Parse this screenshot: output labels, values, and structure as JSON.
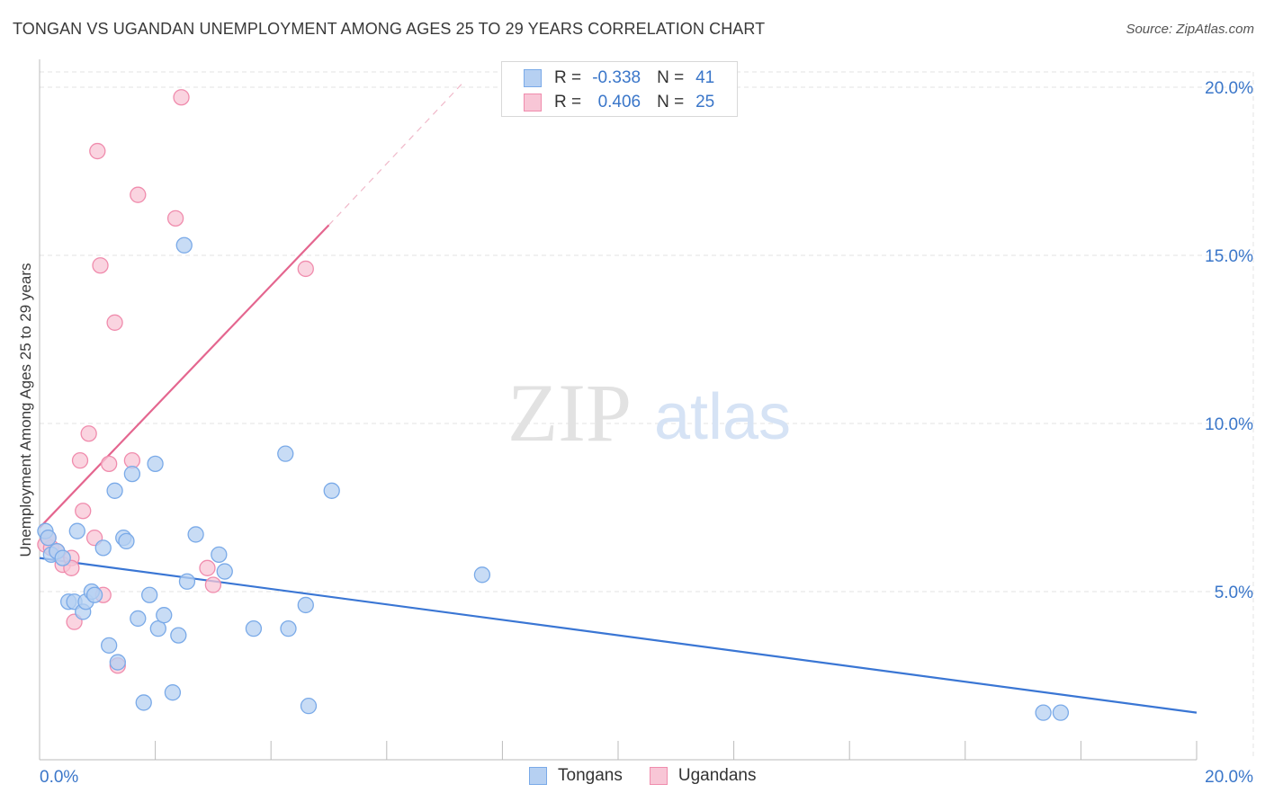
{
  "header": {
    "title": "TONGAN VS UGANDAN UNEMPLOYMENT AMONG AGES 25 TO 29 YEARS CORRELATION CHART",
    "source": "Source: ZipAtlas.com"
  },
  "watermark": {
    "zip": "ZIP",
    "atlas": "atlas"
  },
  "legend": {
    "rows": [
      {
        "r_label": "R =",
        "r_value": "-0.338",
        "n_label": "N =",
        "n_value": "41",
        "color": "#7aaae8",
        "fill": "#b6d0f2"
      },
      {
        "r_label": "R =",
        "r_value": "0.406",
        "n_label": "N =",
        "n_value": "25",
        "color": "#f08cad",
        "fill": "#f8c6d6"
      }
    ]
  },
  "bottom_legend": [
    "Tongans",
    "Ugandans"
  ],
  "chart_data": {
    "type": "scatter",
    "title": "TONGAN VS UGANDAN UNEMPLOYMENT AMONG AGES 25 TO 29 YEARS CORRELATION CHART",
    "xlabel": "",
    "ylabel": "Unemployment Among Ages 25 to 29 years",
    "xlim": [
      0,
      20
    ],
    "ylim": [
      0,
      20
    ],
    "x_tick_labels": [
      "0.0%",
      "20.0%"
    ],
    "y_ticks": [
      5,
      10,
      15,
      20
    ],
    "y_tick_labels": [
      "5.0%",
      "10.0%",
      "15.0%",
      "20.0%"
    ],
    "grid": true,
    "series": [
      {
        "name": "Tongans",
        "color": "#3a76d4",
        "fill": "#b6d0f2",
        "stroke": "#7aaae8",
        "trend": {
          "x": [
            0,
            20
          ],
          "y": [
            6.0,
            1.4
          ],
          "dashed_to": null
        },
        "points": [
          [
            0.1,
            6.8
          ],
          [
            0.15,
            6.6
          ],
          [
            0.2,
            6.1
          ],
          [
            0.3,
            6.2
          ],
          [
            0.4,
            6.0
          ],
          [
            0.5,
            4.7
          ],
          [
            0.6,
            4.7
          ],
          [
            0.65,
            6.8
          ],
          [
            0.75,
            4.4
          ],
          [
            0.8,
            4.7
          ],
          [
            0.9,
            5.0
          ],
          [
            0.95,
            4.9
          ],
          [
            1.1,
            6.3
          ],
          [
            1.2,
            3.4
          ],
          [
            1.3,
            8.0
          ],
          [
            1.35,
            2.9
          ],
          [
            1.45,
            6.6
          ],
          [
            1.5,
            6.5
          ],
          [
            1.6,
            8.5
          ],
          [
            1.7,
            4.2
          ],
          [
            1.8,
            1.7
          ],
          [
            1.9,
            4.9
          ],
          [
            2.0,
            8.8
          ],
          [
            2.05,
            3.9
          ],
          [
            2.15,
            4.3
          ],
          [
            2.3,
            2.0
          ],
          [
            2.4,
            3.7
          ],
          [
            2.5,
            15.3
          ],
          [
            2.55,
            5.3
          ],
          [
            2.7,
            6.7
          ],
          [
            3.1,
            6.1
          ],
          [
            3.2,
            5.6
          ],
          [
            3.7,
            3.9
          ],
          [
            4.25,
            9.1
          ],
          [
            4.3,
            3.9
          ],
          [
            4.6,
            4.6
          ],
          [
            4.65,
            1.6
          ],
          [
            5.05,
            8.0
          ],
          [
            7.65,
            5.5
          ],
          [
            17.35,
            1.4
          ],
          [
            17.65,
            1.4
          ]
        ]
      },
      {
        "name": "Ugandans",
        "color": "#e4668f",
        "fill": "#f8c6d6",
        "stroke": "#f08cad",
        "trend": {
          "x": [
            0,
            5.0
          ],
          "y": [
            6.9,
            15.9
          ],
          "dashed_to": [
            7.3,
            20.1
          ]
        },
        "points": [
          [
            0.1,
            6.4
          ],
          [
            0.2,
            6.3
          ],
          [
            0.3,
            6.2
          ],
          [
            0.4,
            5.8
          ],
          [
            0.55,
            6.0
          ],
          [
            0.55,
            5.7
          ],
          [
            0.6,
            4.1
          ],
          [
            0.7,
            8.9
          ],
          [
            0.75,
            7.4
          ],
          [
            0.85,
            9.7
          ],
          [
            0.95,
            6.6
          ],
          [
            1.0,
            18.1
          ],
          [
            1.05,
            14.7
          ],
          [
            1.1,
            4.9
          ],
          [
            1.2,
            8.8
          ],
          [
            1.3,
            13.0
          ],
          [
            1.35,
            2.8
          ],
          [
            1.6,
            8.9
          ],
          [
            1.7,
            16.8
          ],
          [
            2.35,
            16.1
          ],
          [
            2.45,
            19.7
          ],
          [
            2.9,
            5.7
          ],
          [
            3.0,
            5.2
          ],
          [
            4.6,
            14.6
          ],
          [
            0.15,
            6.6
          ]
        ]
      }
    ]
  }
}
